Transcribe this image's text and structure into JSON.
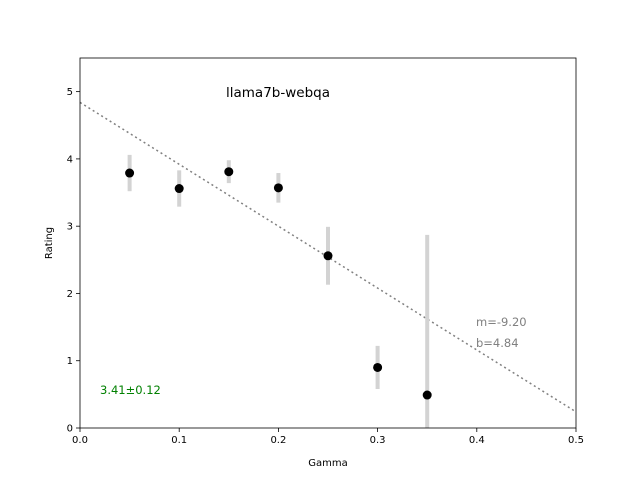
{
  "chart_data": {
    "type": "scatter",
    "title": "llama7b-webqa",
    "xlabel": "Gamma",
    "ylabel": "Rating",
    "xlim": [
      0.0,
      0.5
    ],
    "ylim": [
      0,
      5.5
    ],
    "xticks": [
      "0.0",
      "0.1",
      "0.2",
      "0.3",
      "0.4",
      "0.5"
    ],
    "yticks": [
      "0",
      "1",
      "2",
      "3",
      "4",
      "5"
    ],
    "grid": false,
    "points": [
      {
        "x": 0.05,
        "y": 3.79,
        "err": 0.27
      },
      {
        "x": 0.1,
        "y": 3.56,
        "err": 0.27
      },
      {
        "x": 0.15,
        "y": 3.81,
        "err": 0.17
      },
      {
        "x": 0.2,
        "y": 3.57,
        "err": 0.22
      },
      {
        "x": 0.25,
        "y": 2.56,
        "err": 0.43
      },
      {
        "x": 0.3,
        "y": 0.9,
        "err": 0.32
      },
      {
        "x": 0.35,
        "y": 0.49,
        "err": 2.38
      }
    ],
    "fit": {
      "slope": -9.2,
      "intercept": 4.84
    },
    "colors": {
      "points": "#000000",
      "errorbars": "#d3d3d3",
      "fit_line": "#808080",
      "fit_text": "#808080",
      "mean_text": "#008000"
    },
    "annotations": {
      "fit_m": "m=-9.20",
      "fit_b": "b=4.84",
      "mean": "3.41±0.12"
    }
  }
}
